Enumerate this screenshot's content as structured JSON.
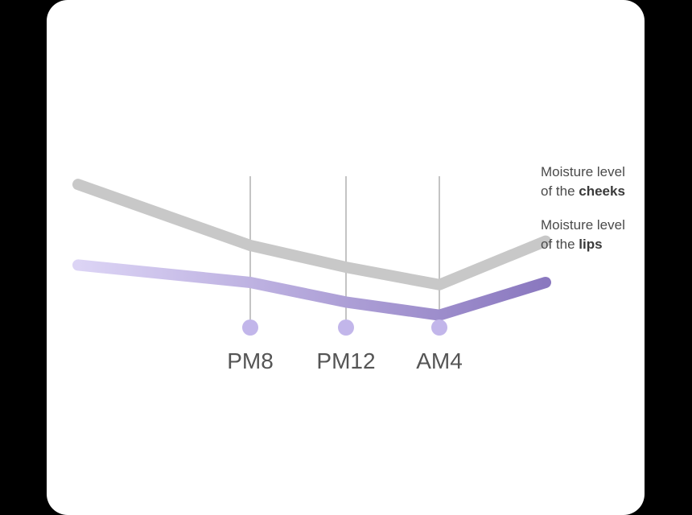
{
  "colors": {
    "background": "#000000",
    "card": "#ffffff",
    "cheeks": "#c8c8c8",
    "lips_start": "#dcd4f5",
    "lips_end": "#8a78bf",
    "marker": "#c2b6ea",
    "guide": "#c4c4c4"
  },
  "legend": {
    "cheeks": {
      "line1": "Moisture level",
      "prefix": "of the ",
      "bold": "cheeks"
    },
    "lips": {
      "line1": "Moisture level",
      "prefix": "of the ",
      "bold": "lips"
    }
  },
  "chart_data": {
    "type": "line",
    "x_categories": [
      "",
      "PM8",
      "PM12",
      "AM4",
      ""
    ],
    "tick_labels": [
      "PM8",
      "PM12",
      "AM4"
    ],
    "series": [
      {
        "name": "Moisture level of the cheeks",
        "values": [
          100,
          72,
          62,
          54,
          74
        ]
      },
      {
        "name": "Moisture level of the lips",
        "values": [
          63,
          55,
          46,
          40,
          55
        ]
      }
    ],
    "ylim": [
      0,
      120
    ],
    "grid": false,
    "legend_position": "right"
  }
}
